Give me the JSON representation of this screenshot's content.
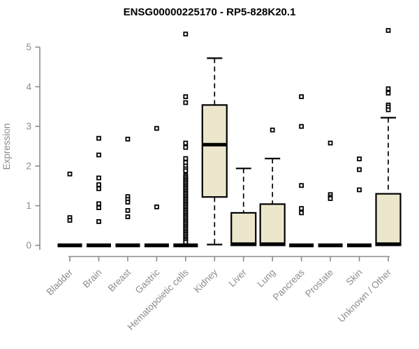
{
  "chart_data": {
    "type": "boxplot",
    "title": "ENSG00000225170 - RP5-828K20.1",
    "ylabel": "Expression",
    "xlabel": "",
    "yticks": [
      0,
      1,
      2,
      3,
      4,
      5
    ],
    "ylim": [
      0,
      5.5
    ],
    "grid": false,
    "legend": "none",
    "categories": [
      "Bladder",
      "Brain",
      "Breast",
      "Gastric",
      "Hematopoietic cells",
      "Kidney",
      "Liver",
      "Lung",
      "Pancreas",
      "Prostate",
      "Skin",
      "Unknown / Other"
    ],
    "boxes": [
      {
        "category": "Bladder",
        "collapsed": true,
        "q1": 0,
        "median": 0,
        "q3": 0,
        "whisker_low": 0,
        "whisker_high": 0,
        "outliers": [
          1.8,
          0.7,
          0.63
        ]
      },
      {
        "category": "Brain",
        "collapsed": true,
        "q1": 0,
        "median": 0,
        "q3": 0,
        "whisker_low": 0,
        "whisker_high": 0,
        "outliers": [
          2.7,
          2.28,
          1.7,
          1.53,
          1.43,
          1.05,
          0.95,
          0.6
        ]
      },
      {
        "category": "Breast",
        "collapsed": true,
        "q1": 0,
        "median": 0,
        "q3": 0,
        "whisker_low": 0,
        "whisker_high": 0,
        "outliers": [
          2.68,
          1.23,
          1.16,
          1.09,
          0.88,
          0.72
        ]
      },
      {
        "category": "Gastric",
        "collapsed": true,
        "q1": 0,
        "median": 0,
        "q3": 0,
        "whisker_low": 0,
        "whisker_high": 0,
        "outliers": [
          2.95,
          0.97
        ]
      },
      {
        "category": "Hematopoietic cells",
        "collapsed": true,
        "q1": 0,
        "median": 0,
        "q3": 0,
        "whisker_low": 0,
        "whisker_high": 0,
        "outliers": [
          5.33,
          3.75,
          3.6,
          2.58,
          2.47,
          2.19,
          2.09,
          2.0,
          1.93,
          1.88,
          1.76,
          1.72,
          1.68,
          1.64,
          1.6,
          1.56,
          1.52,
          1.48,
          1.44,
          1.4,
          1.36,
          1.32,
          1.28,
          1.24,
          1.2,
          1.16,
          1.12,
          1.08,
          1.04,
          1.0,
          0.96,
          0.92,
          0.88,
          0.84,
          0.8,
          0.76,
          0.72,
          0.68,
          0.64,
          0.6,
          0.56,
          0.52,
          0.48,
          0.44,
          0.4,
          0.36,
          0.32,
          0.28,
          0.24,
          0.2,
          0.16,
          0.12,
          0.08
        ]
      },
      {
        "category": "Kidney",
        "collapsed": false,
        "q1": 1.22,
        "median": 2.54,
        "q3": 3.54,
        "whisker_low": 0.02,
        "whisker_high": 4.72,
        "outliers": []
      },
      {
        "category": "Liver",
        "collapsed": false,
        "q1": 0,
        "median": 0.03,
        "q3": 0.82,
        "whisker_low": 0,
        "whisker_high": 1.94,
        "outliers": []
      },
      {
        "category": "Lung",
        "collapsed": false,
        "q1": 0,
        "median": 0.03,
        "q3": 1.04,
        "whisker_low": 0,
        "whisker_high": 2.19,
        "outliers": [
          2.91
        ]
      },
      {
        "category": "Pancreas",
        "collapsed": true,
        "q1": 0,
        "median": 0,
        "q3": 0,
        "whisker_low": 0,
        "whisker_high": 0,
        "outliers": [
          3.75,
          3.0,
          1.51,
          0.93,
          0.82
        ]
      },
      {
        "category": "Prostate",
        "collapsed": true,
        "q1": 0,
        "median": 0,
        "q3": 0,
        "whisker_low": 0,
        "whisker_high": 0,
        "outliers": [
          2.58,
          1.28,
          1.22,
          1.18
        ]
      },
      {
        "category": "Skin",
        "collapsed": true,
        "q1": 0,
        "median": 0,
        "q3": 0,
        "whisker_low": 0,
        "whisker_high": 0,
        "outliers": [
          2.18,
          1.91,
          1.4
        ]
      },
      {
        "category": "Unknown / Other",
        "collapsed": false,
        "q1": 0,
        "median": 0.03,
        "q3": 1.3,
        "whisker_low": 0,
        "whisker_high": 3.22,
        "outliers": [
          5.42,
          3.95,
          3.84,
          3.54,
          3.49,
          3.42
        ]
      }
    ],
    "colors": {
      "box_fill": "#ECE7CC",
      "box_stroke": "#000000",
      "median": "#000000",
      "whisker": "#000000",
      "outlier": "#000000",
      "axis": "#8C8C8C",
      "title": "#000000",
      "background": "#FFFFFF"
    }
  }
}
